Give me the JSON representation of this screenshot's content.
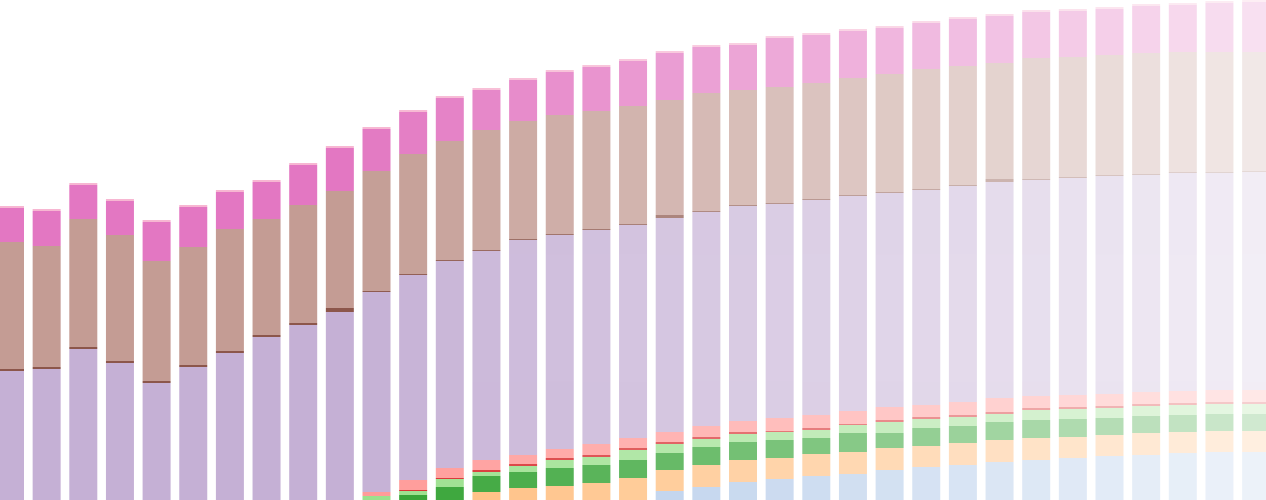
{
  "chart_data": {
    "type": "bar",
    "stacked": true,
    "categories": [
      null,
      null,
      null,
      null,
      null,
      null,
      null,
      null,
      null,
      null,
      null,
      null,
      null,
      null,
      null,
      null,
      null,
      null,
      null,
      null,
      null,
      null,
      null,
      null,
      null,
      null,
      null,
      null,
      null,
      null,
      null,
      null,
      null,
      null,
      null
    ],
    "ylim": [
      0,
      500
    ],
    "series": [
      {
        "color": "#aec7e8",
        "values": [
          0,
          0,
          0,
          0,
          0,
          0,
          0,
          0,
          0,
          0,
          0,
          0,
          0,
          0,
          0,
          0,
          0,
          0,
          9,
          13,
          18,
          21,
          24,
          26,
          30,
          33,
          35,
          38,
          40,
          42,
          44,
          45,
          47,
          48,
          48
        ]
      },
      {
        "color": "#ffbb78",
        "values": [
          0,
          0,
          0,
          0,
          0,
          0,
          0,
          0,
          0,
          0,
          0,
          0,
          0,
          8,
          12,
          14,
          17,
          22,
          21,
          22,
          22,
          21,
          22,
          22,
          22,
          21,
          22,
          22,
          22,
          21,
          21,
          22,
          21,
          21,
          21
        ]
      },
      {
        "color": "#2ca02c",
        "values": [
          0,
          0,
          0,
          0,
          0,
          0,
          0,
          0,
          0,
          0,
          0,
          5,
          13,
          16,
          16,
          18,
          18,
          18,
          17,
          18,
          18,
          18,
          16,
          19,
          15,
          18,
          17,
          18,
          18,
          18,
          17,
          17,
          17,
          17,
          17
        ]
      },
      {
        "color": "#98df8a",
        "values": [
          0,
          0,
          0,
          0,
          0,
          0,
          0,
          0,
          0,
          0,
          4,
          4,
          8,
          4,
          6,
          8,
          8,
          10,
          9,
          8,
          8,
          8,
          8,
          8,
          11,
          9,
          9,
          8,
          10,
          10,
          10,
          10,
          10,
          10,
          10
        ]
      },
      {
        "color": "#d62728",
        "values": [
          0,
          0,
          0,
          0,
          0,
          0,
          0,
          0,
          0,
          0,
          0,
          1,
          1,
          2,
          2,
          2,
          2,
          2,
          2,
          2,
          2,
          1,
          2,
          1,
          2,
          2,
          2,
          2,
          2,
          2,
          2,
          2,
          2,
          2,
          2
        ]
      },
      {
        "color": "#ff9896",
        "values": [
          0,
          0,
          0,
          0,
          0,
          0,
          0,
          0,
          0,
          0,
          4,
          10,
          10,
          10,
          9,
          9,
          11,
          10,
          10,
          11,
          11,
          13,
          13,
          13,
          13,
          12,
          13,
          14,
          12,
          12,
          12,
          12,
          12,
          12,
          12
        ]
      },
      {
        "color": "#c5b0d5",
        "values": [
          129,
          131,
          151,
          137,
          117,
          133,
          147,
          163,
          175,
          188,
          200,
          205,
          207,
          209,
          215,
          214,
          214,
          213,
          214,
          214,
          215,
          214,
          215,
          215,
          214,
          215,
          216,
          216,
          216,
          217,
          218,
          217,
          218,
          217,
          218
        ]
      },
      {
        "color": "#8c564b",
        "values": [
          2,
          2,
          2,
          2,
          2,
          2,
          2,
          2,
          2,
          4,
          1,
          1,
          1,
          1,
          1,
          1,
          1,
          1,
          3,
          1,
          1,
          1,
          1,
          1,
          1,
          1,
          1,
          3,
          1,
          1,
          1,
          1,
          1,
          1,
          1
        ]
      },
      {
        "color": "#c49c94",
        "values": [
          127,
          121,
          128,
          126,
          120,
          118,
          122,
          116,
          118,
          117,
          120,
          120,
          119,
          120,
          118,
          119,
          118,
          118,
          115,
          118,
          115,
          116,
          116,
          117,
          118,
          120,
          119,
          116,
          121,
          120,
          120,
          121,
          120,
          120,
          119
        ]
      },
      {
        "color": "#e377c2",
        "values": [
          34,
          35,
          34,
          34,
          39,
          40,
          37,
          37,
          40,
          43,
          42,
          42,
          43,
          40,
          41,
          43,
          44,
          45,
          47,
          46,
          45,
          49,
          48,
          47,
          46,
          46,
          47,
          47,
          46,
          46,
          46,
          47,
          47,
          49,
          50
        ]
      },
      {
        "color": "#f7b6d2",
        "values": [
          2,
          2,
          2,
          2,
          2,
          2,
          2,
          2,
          2,
          2,
          2,
          2,
          2,
          2,
          2,
          2,
          2,
          2,
          2,
          2,
          2,
          2,
          2,
          2,
          2,
          2,
          2,
          2,
          2,
          2,
          2,
          2,
          2,
          2,
          2
        ]
      }
    ]
  }
}
